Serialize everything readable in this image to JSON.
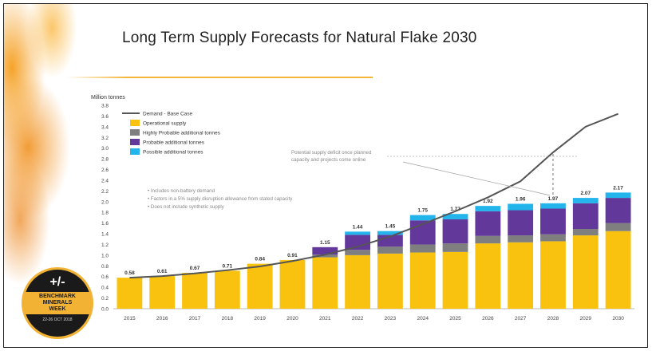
{
  "title": "Long Term Supply Forecasts for Natural Flake 2030",
  "badge": {
    "symbol": "+/-",
    "line1": "BENCHMARK",
    "line2": "MINERALS",
    "line3": "WEEK",
    "date": "22-26 OCT 2018"
  },
  "colors": {
    "operational": "#f9c20f",
    "highly_probable": "#7f7f7f",
    "probable": "#62389a",
    "possible": "#22b4ea",
    "demand": "#555555"
  },
  "chart_data": {
    "type": "bar",
    "stacked": true,
    "ylabel": "Million tonnes",
    "ylim": [
      0,
      3.8
    ],
    "yticks": [
      "0.0",
      "0.2",
      "0.4",
      "0.6",
      "0.8",
      "1.0",
      "1.2",
      "1.4",
      "1.6",
      "1.8",
      "2.0",
      "2.2",
      "2.4",
      "2.6",
      "2.8",
      "3.0",
      "3.2",
      "3.4",
      "3.6",
      "3.8"
    ],
    "categories": [
      "2015",
      "2016",
      "2017",
      "2018",
      "2019",
      "2020",
      "2021",
      "2022",
      "2023",
      "2024",
      "2025",
      "2026",
      "2027",
      "2028",
      "2029",
      "2030"
    ],
    "series": [
      {
        "name": "Operational supply",
        "color": "#f9c20f",
        "values": [
          0.58,
          0.61,
          0.67,
          0.71,
          0.84,
          0.91,
          0.96,
          1.0,
          1.03,
          1.05,
          1.06,
          1.22,
          1.24,
          1.26,
          1.37,
          1.45
        ]
      },
      {
        "name": "Highly Probable additional tonnes",
        "color": "#7f7f7f",
        "values": [
          0,
          0,
          0,
          0,
          0,
          0,
          0.05,
          0.1,
          0.13,
          0.15,
          0.16,
          0.14,
          0.13,
          0.13,
          0.12,
          0.15
        ]
      },
      {
        "name": "Probable additional tonnes",
        "color": "#62389a",
        "values": [
          0,
          0,
          0,
          0,
          0,
          0,
          0.14,
          0.28,
          0.22,
          0.45,
          0.45,
          0.46,
          0.47,
          0.48,
          0.48,
          0.47
        ]
      },
      {
        "name": "Possible additional tonnes",
        "color": "#22b4ea",
        "values": [
          0,
          0,
          0,
          0,
          0,
          0,
          0,
          0.06,
          0.07,
          0.1,
          0.1,
          0.1,
          0.12,
          0.1,
          0.1,
          0.1
        ]
      }
    ],
    "totals": [
      "0.58",
      "0.61",
      "0.67",
      "0.71",
      "0.84",
      "0.91",
      "1.15",
      "1.44",
      "1.45",
      "1.75",
      "1.77",
      "1.92",
      "1.96",
      "1.97",
      "2.07",
      "2.17"
    ],
    "demand": {
      "name": "Demand - Base Case",
      "values": [
        0.58,
        0.61,
        0.66,
        0.72,
        0.79,
        0.89,
        1.01,
        1.16,
        1.35,
        1.58,
        1.82,
        2.08,
        2.38,
        2.92,
        3.4,
        3.64
      ]
    },
    "notes": [
      "Includes non-battery demand",
      "Factors in a 5% supply disruption allowance from stated capacity",
      "Does not include synthetic supply"
    ],
    "annotation": "Potential supply deficit once planned capacity and projects come online",
    "legend_position": "top-left",
    "grid": false
  }
}
